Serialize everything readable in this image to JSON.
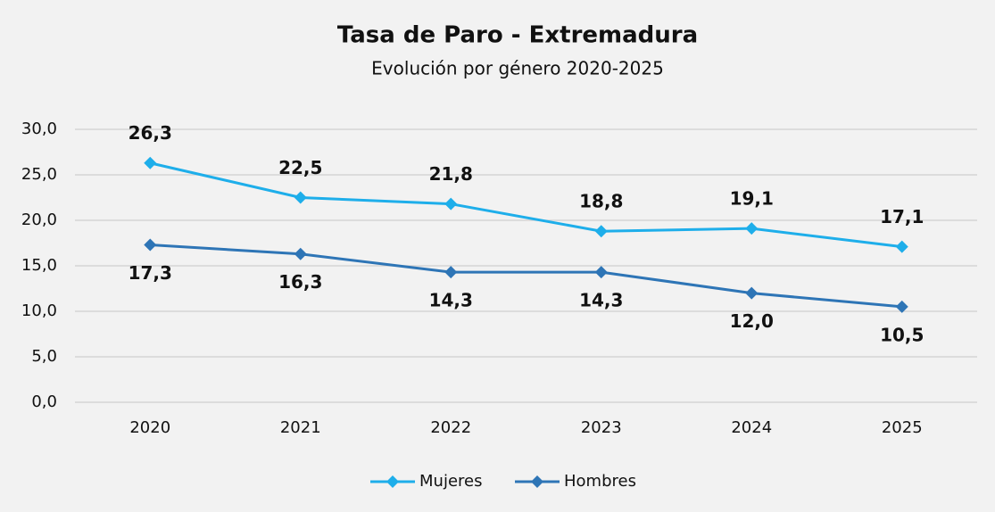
{
  "chart_data": {
    "type": "line",
    "title": "Tasa de Paro - Extremadura",
    "subtitle": "Evolución por género 2020-2025",
    "categories": [
      "2020",
      "2021",
      "2022",
      "2023",
      "2024",
      "2025"
    ],
    "series": [
      {
        "name": "Mujeres",
        "color": "#1eaeea",
        "values": [
          26.3,
          22.5,
          21.8,
          18.8,
          19.1,
          17.1
        ],
        "value_labels": [
          "26,3",
          "22,5",
          "21,8",
          "18,8",
          "19,1",
          "17,1"
        ]
      },
      {
        "name": "Hombres",
        "color": "#2e75b6",
        "values": [
          17.3,
          16.3,
          14.3,
          14.3,
          12.0,
          10.5
        ],
        "value_labels": [
          "17,3",
          "16,3",
          "14,3",
          "14,3",
          "12,0",
          "10,5"
        ]
      }
    ],
    "ylim": [
      0,
      30
    ],
    "yticks": [
      {
        "value": 0,
        "label": "0,0"
      },
      {
        "value": 5,
        "label": "5,0"
      },
      {
        "value": 10,
        "label": "10,0"
      },
      {
        "value": 15,
        "label": "15,0"
      },
      {
        "value": 20,
        "label": "20,0"
      },
      {
        "value": 25,
        "label": "25,0"
      },
      {
        "value": 30,
        "label": "30,0"
      }
    ],
    "grid": true,
    "legend": "bottom"
  }
}
